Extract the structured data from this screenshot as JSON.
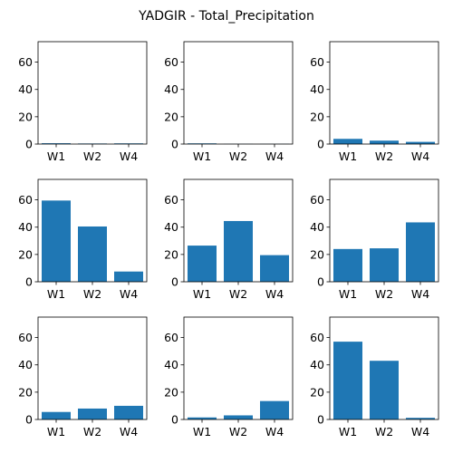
{
  "figure_title": "YADGIR - Total_Precipitation",
  "bar_color": "#1f77b4",
  "chart_data": [
    {
      "type": "bar",
      "categories": [
        "W1",
        "W2",
        "W4"
      ],
      "values": [
        0.6,
        0.4,
        0.5
      ],
      "ylim": [
        0,
        75
      ],
      "yticks": [
        0,
        20,
        40,
        60
      ],
      "ytick_labels": [
        "0",
        "20",
        "40",
        "60"
      ]
    },
    {
      "type": "bar",
      "categories": [
        "W1",
        "W2",
        "W4"
      ],
      "values": [
        0.5,
        0.1,
        0.1
      ],
      "ylim": [
        0,
        75
      ],
      "yticks": [
        0,
        20,
        40,
        60
      ],
      "ytick_labels": [
        "0",
        "20",
        "40",
        "60"
      ]
    },
    {
      "type": "bar",
      "categories": [
        "W1",
        "W2",
        "W4"
      ],
      "values": [
        3.8,
        2.5,
        1.6
      ],
      "ylim": [
        0,
        75
      ],
      "yticks": [
        0,
        20,
        40,
        60
      ],
      "ytick_labels": [
        "0",
        "20",
        "40",
        "60"
      ]
    },
    {
      "type": "bar",
      "categories": [
        "W1",
        "W2",
        "W4"
      ],
      "values": [
        59.5,
        40.5,
        7.5
      ],
      "ylim": [
        0,
        75
      ],
      "yticks": [
        0,
        20,
        40,
        60
      ],
      "ytick_labels": [
        "0",
        "20",
        "40",
        "60"
      ]
    },
    {
      "type": "bar",
      "categories": [
        "W1",
        "W2",
        "W4"
      ],
      "values": [
        26.5,
        44.5,
        19.5
      ],
      "ylim": [
        0,
        75
      ],
      "yticks": [
        0,
        20,
        40,
        60
      ],
      "ytick_labels": [
        "0",
        "20",
        "40",
        "60"
      ]
    },
    {
      "type": "bar",
      "categories": [
        "W1",
        "W2",
        "W4"
      ],
      "values": [
        24.0,
        24.5,
        43.5
      ],
      "ylim": [
        0,
        75
      ],
      "yticks": [
        0,
        20,
        40,
        60
      ],
      "ytick_labels": [
        "0",
        "20",
        "40",
        "60"
      ]
    },
    {
      "type": "bar",
      "categories": [
        "W1",
        "W2",
        "W4"
      ],
      "values": [
        5.5,
        8.0,
        10.0
      ],
      "ylim": [
        0,
        75
      ],
      "yticks": [
        0,
        20,
        40,
        60
      ],
      "ytick_labels": [
        "0",
        "20",
        "40",
        "60"
      ]
    },
    {
      "type": "bar",
      "categories": [
        "W1",
        "W2",
        "W4"
      ],
      "values": [
        1.5,
        3.0,
        13.5
      ],
      "ylim": [
        0,
        75
      ],
      "yticks": [
        0,
        20,
        40,
        60
      ],
      "ytick_labels": [
        "0",
        "20",
        "40",
        "60"
      ]
    },
    {
      "type": "bar",
      "categories": [
        "W1",
        "W2",
        "W4"
      ],
      "values": [
        57.0,
        43.0,
        1.2
      ],
      "ylim": [
        0,
        75
      ],
      "yticks": [
        0,
        20,
        40,
        60
      ],
      "ytick_labels": [
        "0",
        "20",
        "40",
        "60"
      ]
    }
  ]
}
